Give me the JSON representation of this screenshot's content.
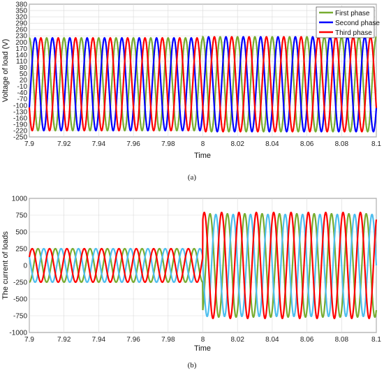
{
  "chart_data": [
    {
      "id": "a",
      "type": "line",
      "caption": "(a)",
      "xlabel": "Time",
      "ylabel": "Voltage of load (V)",
      "xlim": [
        7.9,
        8.1
      ],
      "ylim": [
        -250,
        380
      ],
      "grid": true,
      "legend_position": "top-right",
      "x_ticks": [
        7.9,
        7.92,
        7.94,
        7.96,
        7.98,
        8,
        8.02,
        8.04,
        8.06,
        8.08,
        8.1
      ],
      "x_tick_labels": [
        "7.9",
        "7.92",
        "7.94",
        "7.96",
        "7.98",
        "8",
        "8.02",
        "8.04",
        "8.06",
        "8.08",
        "8.1"
      ],
      "y_tick_labels": [
        "380",
        "350",
        "320",
        "290",
        "260",
        "230",
        "200",
        "170",
        "140",
        "110",
        "80",
        "50",
        "20",
        "-10",
        "-40",
        "-70",
        "-100",
        "-130",
        "-160",
        "-190",
        "-220",
        "-250"
      ],
      "y_tick_positions": [
        380,
        350,
        320,
        290,
        260,
        230,
        200,
        170,
        140,
        110,
        80,
        50,
        20,
        -10,
        -40,
        -70,
        -100,
        -130,
        -160,
        -190,
        -220,
        -250
      ],
      "series": [
        {
          "name": "First phase",
          "color": "#77AC30",
          "amplitude_before": 220,
          "amplitude_after": 225,
          "phase_deg_before": 90,
          "phase_deg_after": 90
        },
        {
          "name": "Second phase",
          "color": "#0000FF",
          "amplitude_before": 220,
          "amplitude_after": 225,
          "phase_deg_before": -30,
          "phase_deg_after": -30
        },
        {
          "name": "Third phase",
          "color": "#FF0000",
          "amplitude_before": 220,
          "amplitude_after": 225,
          "phase_deg_before": -150,
          "phase_deg_after": -150
        }
      ],
      "frequency_hz": 100,
      "switch_time": 8.0
    },
    {
      "id": "b",
      "type": "line",
      "caption": "(b)",
      "xlabel": "Time",
      "ylabel": "The current of loads",
      "xlim": [
        7.9,
        8.1
      ],
      "ylim": [
        -1000,
        1000
      ],
      "grid": true,
      "x_ticks": [
        7.9,
        7.92,
        7.94,
        7.96,
        7.98,
        8,
        8.02,
        8.04,
        8.06,
        8.08,
        8.1
      ],
      "x_tick_labels": [
        "7.9",
        "7.92",
        "7.94",
        "7.96",
        "7.98",
        "8",
        "8.02",
        "8.04",
        "8.06",
        "8.08",
        "8.1"
      ],
      "y_tick_labels": [
        "1000",
        "750",
        "500",
        "250",
        "0",
        "-250",
        "-500",
        "-750",
        "-1000"
      ],
      "y_tick_positions": [
        1000,
        750,
        500,
        250,
        0,
        -250,
        -500,
        -750,
        -1000
      ],
      "series": [
        {
          "color": "#77AC30",
          "amplitude_before": 250,
          "amplitude_after": 770,
          "phase_deg_before": -90,
          "phase_deg_after": -60
        },
        {
          "color": "#4DBEEE",
          "amplitude_before": 250,
          "amplitude_after": 760,
          "phase_deg_before": 150,
          "phase_deg_after": 180
        },
        {
          "color": "#FF0000",
          "amplitude_before": 250,
          "amplitude_after": 790,
          "phase_deg_before": 30,
          "phase_deg_after": 60
        }
      ],
      "frequency_hz": 100,
      "switch_time": 8.0
    }
  ]
}
